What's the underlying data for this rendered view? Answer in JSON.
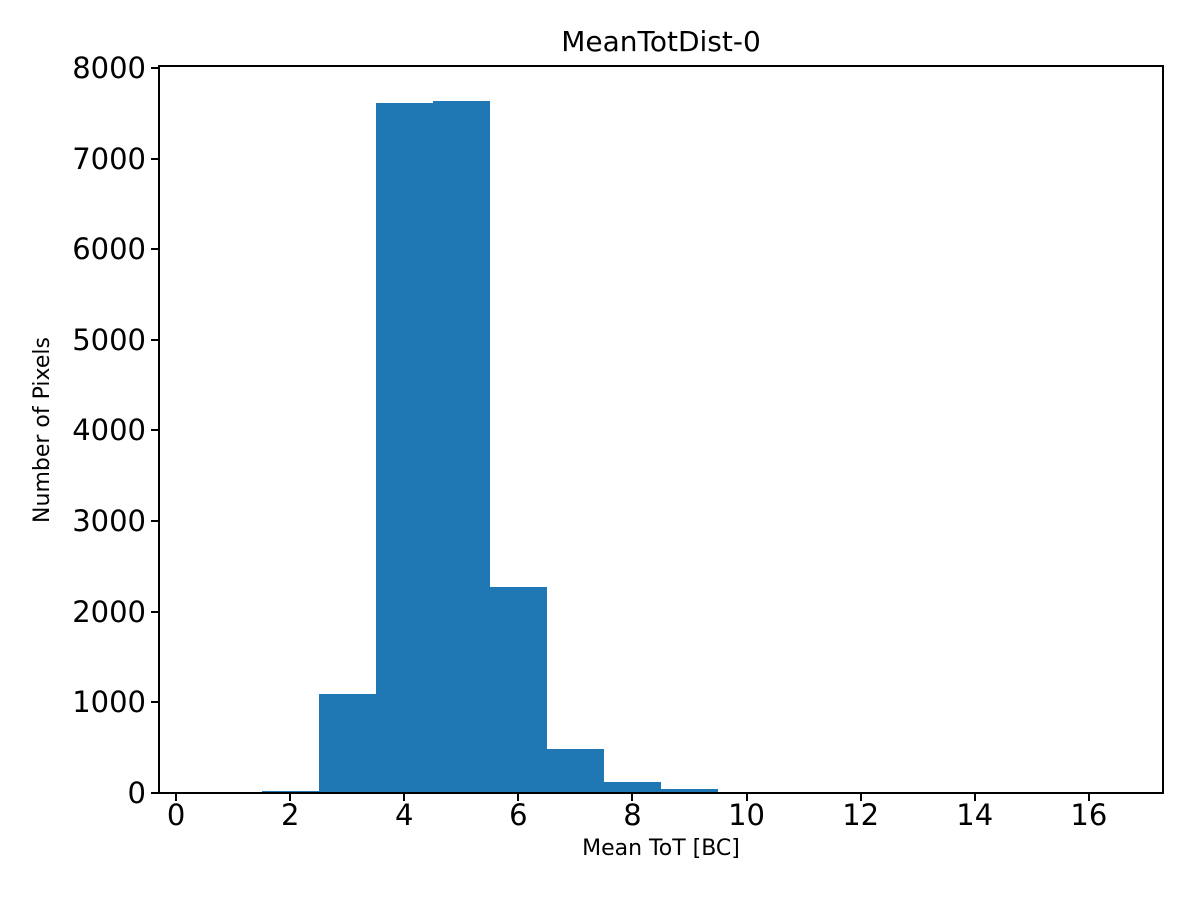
{
  "figure": {
    "background": "#ffffff"
  },
  "chart_data": {
    "type": "bar",
    "subtype": "histogram",
    "title": "MeanTotDist-0",
    "xlabel": "Mean ToT [BC]",
    "ylabel": "Number of Pixels",
    "bar_color": "#1f77b4",
    "axis_color": "#000000",
    "grid": false,
    "legend": "none",
    "bin_edges": [
      1.5,
      2.5,
      3.5,
      4.5,
      5.5,
      6.5,
      7.5,
      8.5,
      9.5,
      10.5
    ],
    "counts": [
      20,
      1090,
      7610,
      7640,
      2270,
      480,
      120,
      40,
      10
    ],
    "xlim": [
      -0.3,
      17.3
    ],
    "ylim": [
      0,
      8022
    ],
    "xticks": [
      0,
      2,
      4,
      6,
      8,
      10,
      12,
      14,
      16
    ],
    "yticks": [
      0,
      1000,
      2000,
      3000,
      4000,
      5000,
      6000,
      7000,
      8000
    ]
  }
}
